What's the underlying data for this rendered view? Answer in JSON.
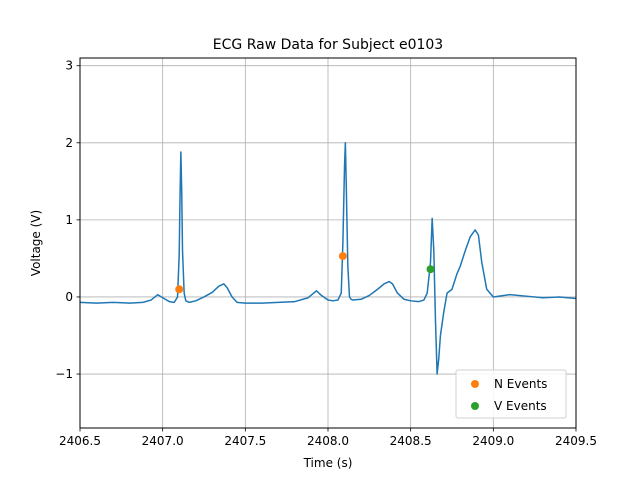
{
  "chart_data": {
    "type": "line",
    "title": "ECG Raw Data for Subject e0103",
    "xlabel": "Time (s)",
    "ylabel": "Voltage (V)",
    "xlim": [
      2406.5,
      2409.5
    ],
    "ylim": [
      -1.7,
      3.1
    ],
    "xticks": [
      2406.5,
      2407.0,
      2407.5,
      2408.0,
      2408.5,
      2409.0,
      2409.5
    ],
    "xtick_labels": [
      "2406.5",
      "2407.0",
      "2407.5",
      "2408.0",
      "2408.5",
      "2409.0",
      "2409.5"
    ],
    "yticks": [
      -1,
      0,
      1,
      2,
      3
    ],
    "ytick_labels": [
      "−1",
      "0",
      "1",
      "2",
      "3"
    ],
    "grid": true,
    "legend_position": "bottom-right",
    "series": [
      {
        "color": "#1f77b4",
        "x": [
          2406.5,
          2406.6,
          2406.7,
          2406.8,
          2406.88,
          2406.93,
          2406.97,
          2407.0,
          2407.04,
          2407.07,
          2407.09,
          2407.1,
          2407.105,
          2407.11,
          2407.115,
          2407.12,
          2407.13,
          2407.14,
          2407.16,
          2407.2,
          2407.25,
          2407.3,
          2407.34,
          2407.37,
          2407.39,
          2407.42,
          2407.45,
          2407.5,
          2407.6,
          2407.7,
          2407.8,
          2407.88,
          2407.93,
          2407.96,
          2408.0,
          2408.03,
          2408.06,
          2408.08,
          2408.09,
          2408.1,
          2408.105,
          2408.11,
          2408.12,
          2408.13,
          2408.14,
          2408.15,
          2408.2,
          2408.25,
          2408.3,
          2408.34,
          2408.37,
          2408.39,
          2408.42,
          2408.46,
          2408.5,
          2408.55,
          2408.58,
          2408.6,
          2408.62,
          2408.63,
          2408.64,
          2408.65,
          2408.66,
          2408.67,
          2408.68,
          2408.7,
          2408.72,
          2408.75,
          2408.78,
          2408.8,
          2408.83,
          2408.86,
          2408.89,
          2408.91,
          2408.93,
          2408.96,
          2409.0,
          2409.1,
          2409.2,
          2409.3,
          2409.4,
          2409.5
        ],
        "y": [
          -0.07,
          -0.08,
          -0.07,
          -0.08,
          -0.07,
          -0.04,
          0.03,
          -0.01,
          -0.06,
          -0.07,
          0.0,
          0.55,
          1.3,
          1.88,
          1.4,
          0.6,
          0.05,
          -0.05,
          -0.07,
          -0.05,
          0.0,
          0.06,
          0.14,
          0.17,
          0.12,
          0.0,
          -0.07,
          -0.08,
          -0.08,
          -0.07,
          -0.06,
          -0.01,
          0.08,
          0.02,
          -0.04,
          -0.05,
          -0.04,
          0.05,
          0.7,
          1.7,
          2.0,
          1.5,
          0.4,
          0.0,
          -0.03,
          -0.04,
          -0.03,
          0.02,
          0.1,
          0.17,
          0.2,
          0.17,
          0.05,
          -0.03,
          -0.05,
          -0.06,
          -0.04,
          0.05,
          0.45,
          1.02,
          0.6,
          -0.3,
          -1.0,
          -0.8,
          -0.5,
          -0.2,
          0.05,
          0.1,
          0.3,
          0.4,
          0.6,
          0.78,
          0.87,
          0.8,
          0.45,
          0.1,
          0.0,
          0.03,
          0.01,
          -0.01,
          0.0,
          -0.02
        ]
      }
    ],
    "markers": [
      {
        "name": "N Events",
        "color": "#ff7f0e",
        "x": [
          2407.1,
          2408.09
        ],
        "y": [
          0.1,
          0.53
        ]
      },
      {
        "name": "V Events",
        "color": "#2ca02c",
        "x": [
          2408.62
        ],
        "y": [
          0.36
        ]
      }
    ]
  }
}
